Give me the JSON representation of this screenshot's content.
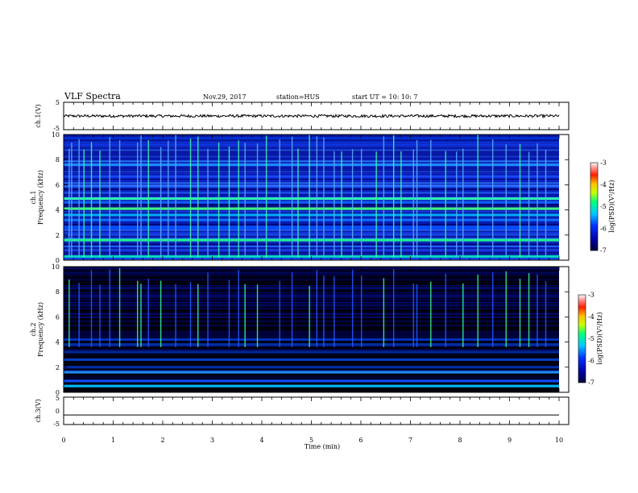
{
  "header": {
    "title": "VLF Spectra",
    "date": "Nov.29, 2017",
    "station": "station=HUS",
    "start_ut": "start  UT =   10: 10: 7"
  },
  "colors": {
    "frame": "#000000",
    "wave_line": "#000000",
    "background_panel": "#000000"
  },
  "chart_data": [
    {
      "type": "line",
      "panel": "ch1-waveform",
      "ylabel": "ch.1(V)",
      "ylim": [
        -5,
        5
      ],
      "yticks": [
        5,
        -5
      ],
      "xlim": [
        0,
        10
      ],
      "description_level": "noisy signal near 0 V, peak-to-peak about 1 V"
    },
    {
      "type": "heatmap",
      "panel": "ch1-spectrogram",
      "ylabel": "ch.1\nFrequency (kHz)",
      "ylabel_line1": "ch.1",
      "ylabel_line2": "Frequency (kHz)",
      "ylim": [
        0,
        10
      ],
      "yticks": [
        0,
        2,
        4,
        6,
        8,
        10
      ],
      "xlim": [
        0,
        10
      ],
      "colorbar": {
        "label": "log(PSD)(V²/Hz)",
        "range": [
          -7,
          -3
        ],
        "ticks": [
          -3,
          -4,
          -5,
          -6,
          -7
        ]
      },
      "bands_khz": [
        0.3,
        1.6,
        2.6,
        3.2,
        3.6,
        4.1,
        4.6,
        4.9,
        5.9,
        7.6,
        9.7
      ],
      "impulse_times_min": [
        0.1,
        0.15,
        0.3,
        0.4,
        0.55,
        0.72,
        0.92,
        1.12,
        1.48,
        1.55,
        1.7,
        1.95,
        2.1,
        2.25,
        2.55,
        2.7,
        2.9,
        3.12,
        3.33,
        3.52,
        3.65,
        3.9,
        4.08,
        4.35,
        4.6,
        4.72,
        4.95,
        5.1,
        5.24,
        5.45,
        5.6,
        5.82,
        6.0,
        6.3,
        6.45,
        6.65,
        6.8,
        7.05,
        7.12,
        7.4,
        7.7,
        7.92,
        8.05,
        8.35,
        8.65,
        8.92,
        9.2,
        9.38,
        9.55,
        9.72
      ]
    },
    {
      "type": "heatmap",
      "panel": "ch2-spectrogram",
      "ylabel": "ch.2\nFrequency (kHz)",
      "ylabel_line1": "ch.2",
      "ylabel_line2": "Frequency (kHz)",
      "ylim": [
        0,
        10
      ],
      "yticks": [
        0,
        2,
        4,
        6,
        8,
        10
      ],
      "xlim": [
        0,
        10
      ],
      "colorbar": {
        "label": "log(PSD)(V²/Hz)",
        "range": [
          -7,
          -3
        ],
        "ticks": [
          -3,
          -4,
          -5,
          -6,
          -7
        ]
      },
      "bands_khz": [
        0.5,
        0.9,
        1.6,
        2.0,
        2.6,
        3.2,
        3.8,
        4.2
      ],
      "impulse_times_min": [
        0.1,
        0.3,
        0.55,
        0.72,
        0.92,
        1.12,
        1.48,
        1.55,
        1.7,
        1.95,
        2.25,
        2.55,
        2.7,
        2.9,
        3.33,
        3.52,
        3.65,
        3.9,
        4.35,
        4.6,
        4.95,
        5.1,
        5.24,
        5.45,
        5.82,
        6.0,
        6.45,
        6.65,
        7.05,
        7.12,
        7.4,
        7.7,
        8.05,
        8.35,
        8.65,
        8.92,
        9.2,
        9.38,
        9.55,
        9.72
      ]
    },
    {
      "type": "line",
      "panel": "ch3-waveform",
      "ylabel": "ch.3(V)",
      "ylim": [
        -5,
        5
      ],
      "yticks": [
        5,
        0,
        -5
      ],
      "xlim": [
        0,
        10
      ],
      "constant_value": -1.5,
      "xlabel": "Time (min)",
      "xticks": [
        0,
        1,
        2,
        3,
        4,
        5,
        6,
        7,
        8,
        9,
        10
      ]
    }
  ]
}
